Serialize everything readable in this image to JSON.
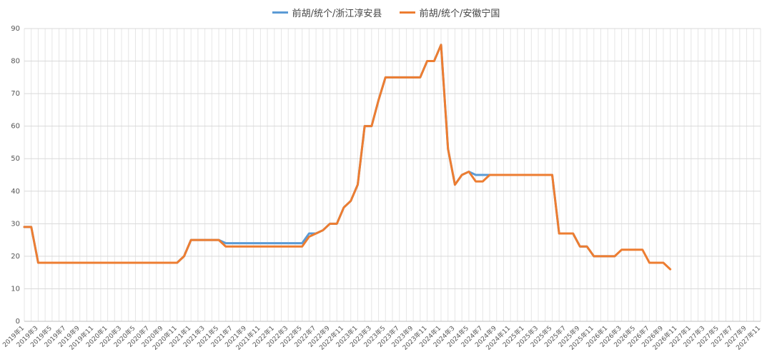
{
  "chart_data": {
    "type": "line",
    "title": "",
    "xlabel": "",
    "ylabel": "",
    "ylim": [
      0,
      90
    ],
    "yticks": [
      0,
      10,
      20,
      30,
      40,
      50,
      60,
      70,
      80,
      90
    ],
    "grid": true,
    "legend_position": "top-center",
    "x_tick_labels": [
      "2019年1",
      "2019年3",
      "2019年5",
      "2019年7",
      "2019年9",
      "2019年11",
      "2020年1",
      "2020年3",
      "2020年5",
      "2020年7",
      "2020年9",
      "2020年11",
      "2021年1",
      "2021年3",
      "2021年5",
      "2021年7",
      "2021年9",
      "2021年11",
      "2022年1",
      "2022年3",
      "2022年5",
      "2022年7",
      "2022年9",
      "2022年11",
      "2023年1",
      "2023年3",
      "2023年5",
      "2023年7",
      "2023年9",
      "2023年11",
      "2024年1",
      "2024年3",
      "2024年5",
      "2024年7",
      "2024年9",
      "2024年11",
      "2025年1",
      "2025年3",
      "2025年5",
      "2025年7",
      "2025年9",
      "2025年11",
      "2026年1",
      "2026年3",
      "2026年5",
      "2026年7",
      "2026年9",
      "2026年11",
      "2027年1",
      "2027年3",
      "2027年5",
      "2027年7",
      "2027年9",
      "2027年11"
    ],
    "series": [
      {
        "name": "前胡/统个/浙江淳安县",
        "color": "#5b9bd5",
        "values": [
          29,
          29,
          18,
          18,
          18,
          18,
          18,
          18,
          18,
          18,
          18,
          18,
          18,
          18,
          18,
          18,
          18,
          18,
          18,
          18,
          18,
          18,
          18,
          20,
          25,
          25,
          25,
          25,
          25,
          24,
          24,
          24,
          24,
          24,
          24,
          24,
          24,
          24,
          24,
          24,
          24,
          27,
          27,
          28,
          30,
          30,
          35,
          37,
          42,
          60,
          60,
          68,
          75,
          75,
          75,
          75,
          75,
          75,
          80,
          80,
          85,
          53,
          42,
          45,
          46,
          45,
          45,
          45,
          45,
          45,
          45,
          45,
          45,
          45,
          45,
          45,
          45,
          27,
          27,
          27,
          23,
          23,
          20,
          20,
          20,
          20
        ]
      },
      {
        "name": "前胡/统个/安徽宁国",
        "color": "#ed7d31",
        "values": [
          29,
          29,
          18,
          18,
          18,
          18,
          18,
          18,
          18,
          18,
          18,
          18,
          18,
          18,
          18,
          18,
          18,
          18,
          18,
          18,
          18,
          18,
          18,
          20,
          25,
          25,
          25,
          25,
          25,
          23,
          23,
          23,
          23,
          23,
          23,
          23,
          23,
          23,
          23,
          23,
          23,
          26,
          27,
          28,
          30,
          30,
          35,
          37,
          42,
          60,
          60,
          68,
          75,
          75,
          75,
          75,
          75,
          75,
          80,
          80,
          85,
          53,
          42,
          45,
          46,
          43,
          43,
          45,
          45,
          45,
          45,
          45,
          45,
          45,
          45,
          45,
          45,
          27,
          27,
          27,
          23,
          23,
          20,
          20,
          20,
          20,
          22,
          22,
          22,
          22,
          18,
          18,
          18,
          16
        ]
      }
    ]
  }
}
